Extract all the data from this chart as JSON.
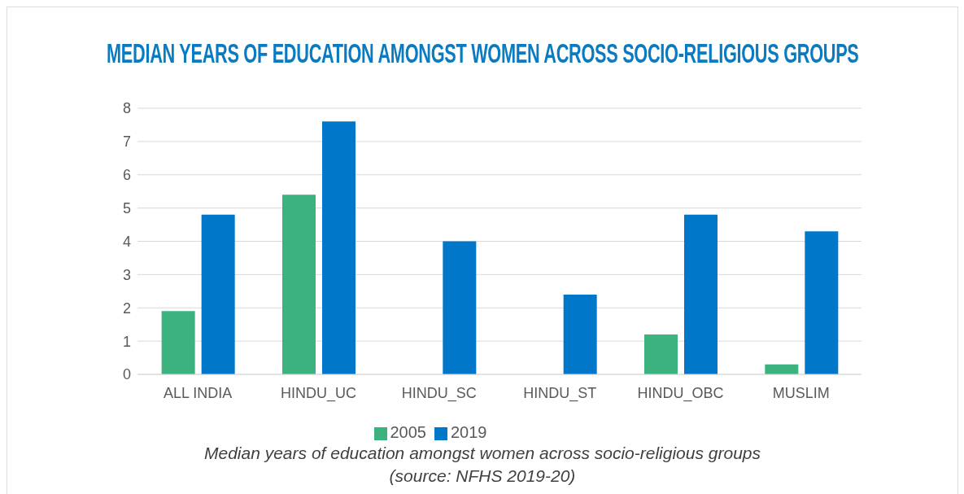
{
  "chart_data": {
    "type": "bar",
    "title": "MEDIAN YEARS OF EDUCATION AMONGST WOMEN ACROSS SOCIO-RELIGIOUS GROUPS",
    "categories": [
      "ALL INDIA",
      "HINDU_UC",
      "HINDU_SC",
      "HINDU_ST",
      "HINDU_OBC",
      "MUSLIM"
    ],
    "series": [
      {
        "name": "2005",
        "color": "#3cb37f",
        "values": [
          1.9,
          5.4,
          0,
          0,
          1.2,
          0.3
        ]
      },
      {
        "name": "2019",
        "color": "#0077c8",
        "values": [
          4.8,
          7.6,
          4.0,
          2.4,
          4.8,
          4.3
        ]
      }
    ],
    "ylim": [
      0,
      8
    ],
    "yticks": [
      0,
      1,
      2,
      3,
      4,
      5,
      6,
      7,
      8
    ],
    "grid": "y",
    "legend": "bottom",
    "annotations": [
      "Median years of education amongst women across socio-religious groups",
      "(source: NFHS 2019-20)"
    ]
  }
}
